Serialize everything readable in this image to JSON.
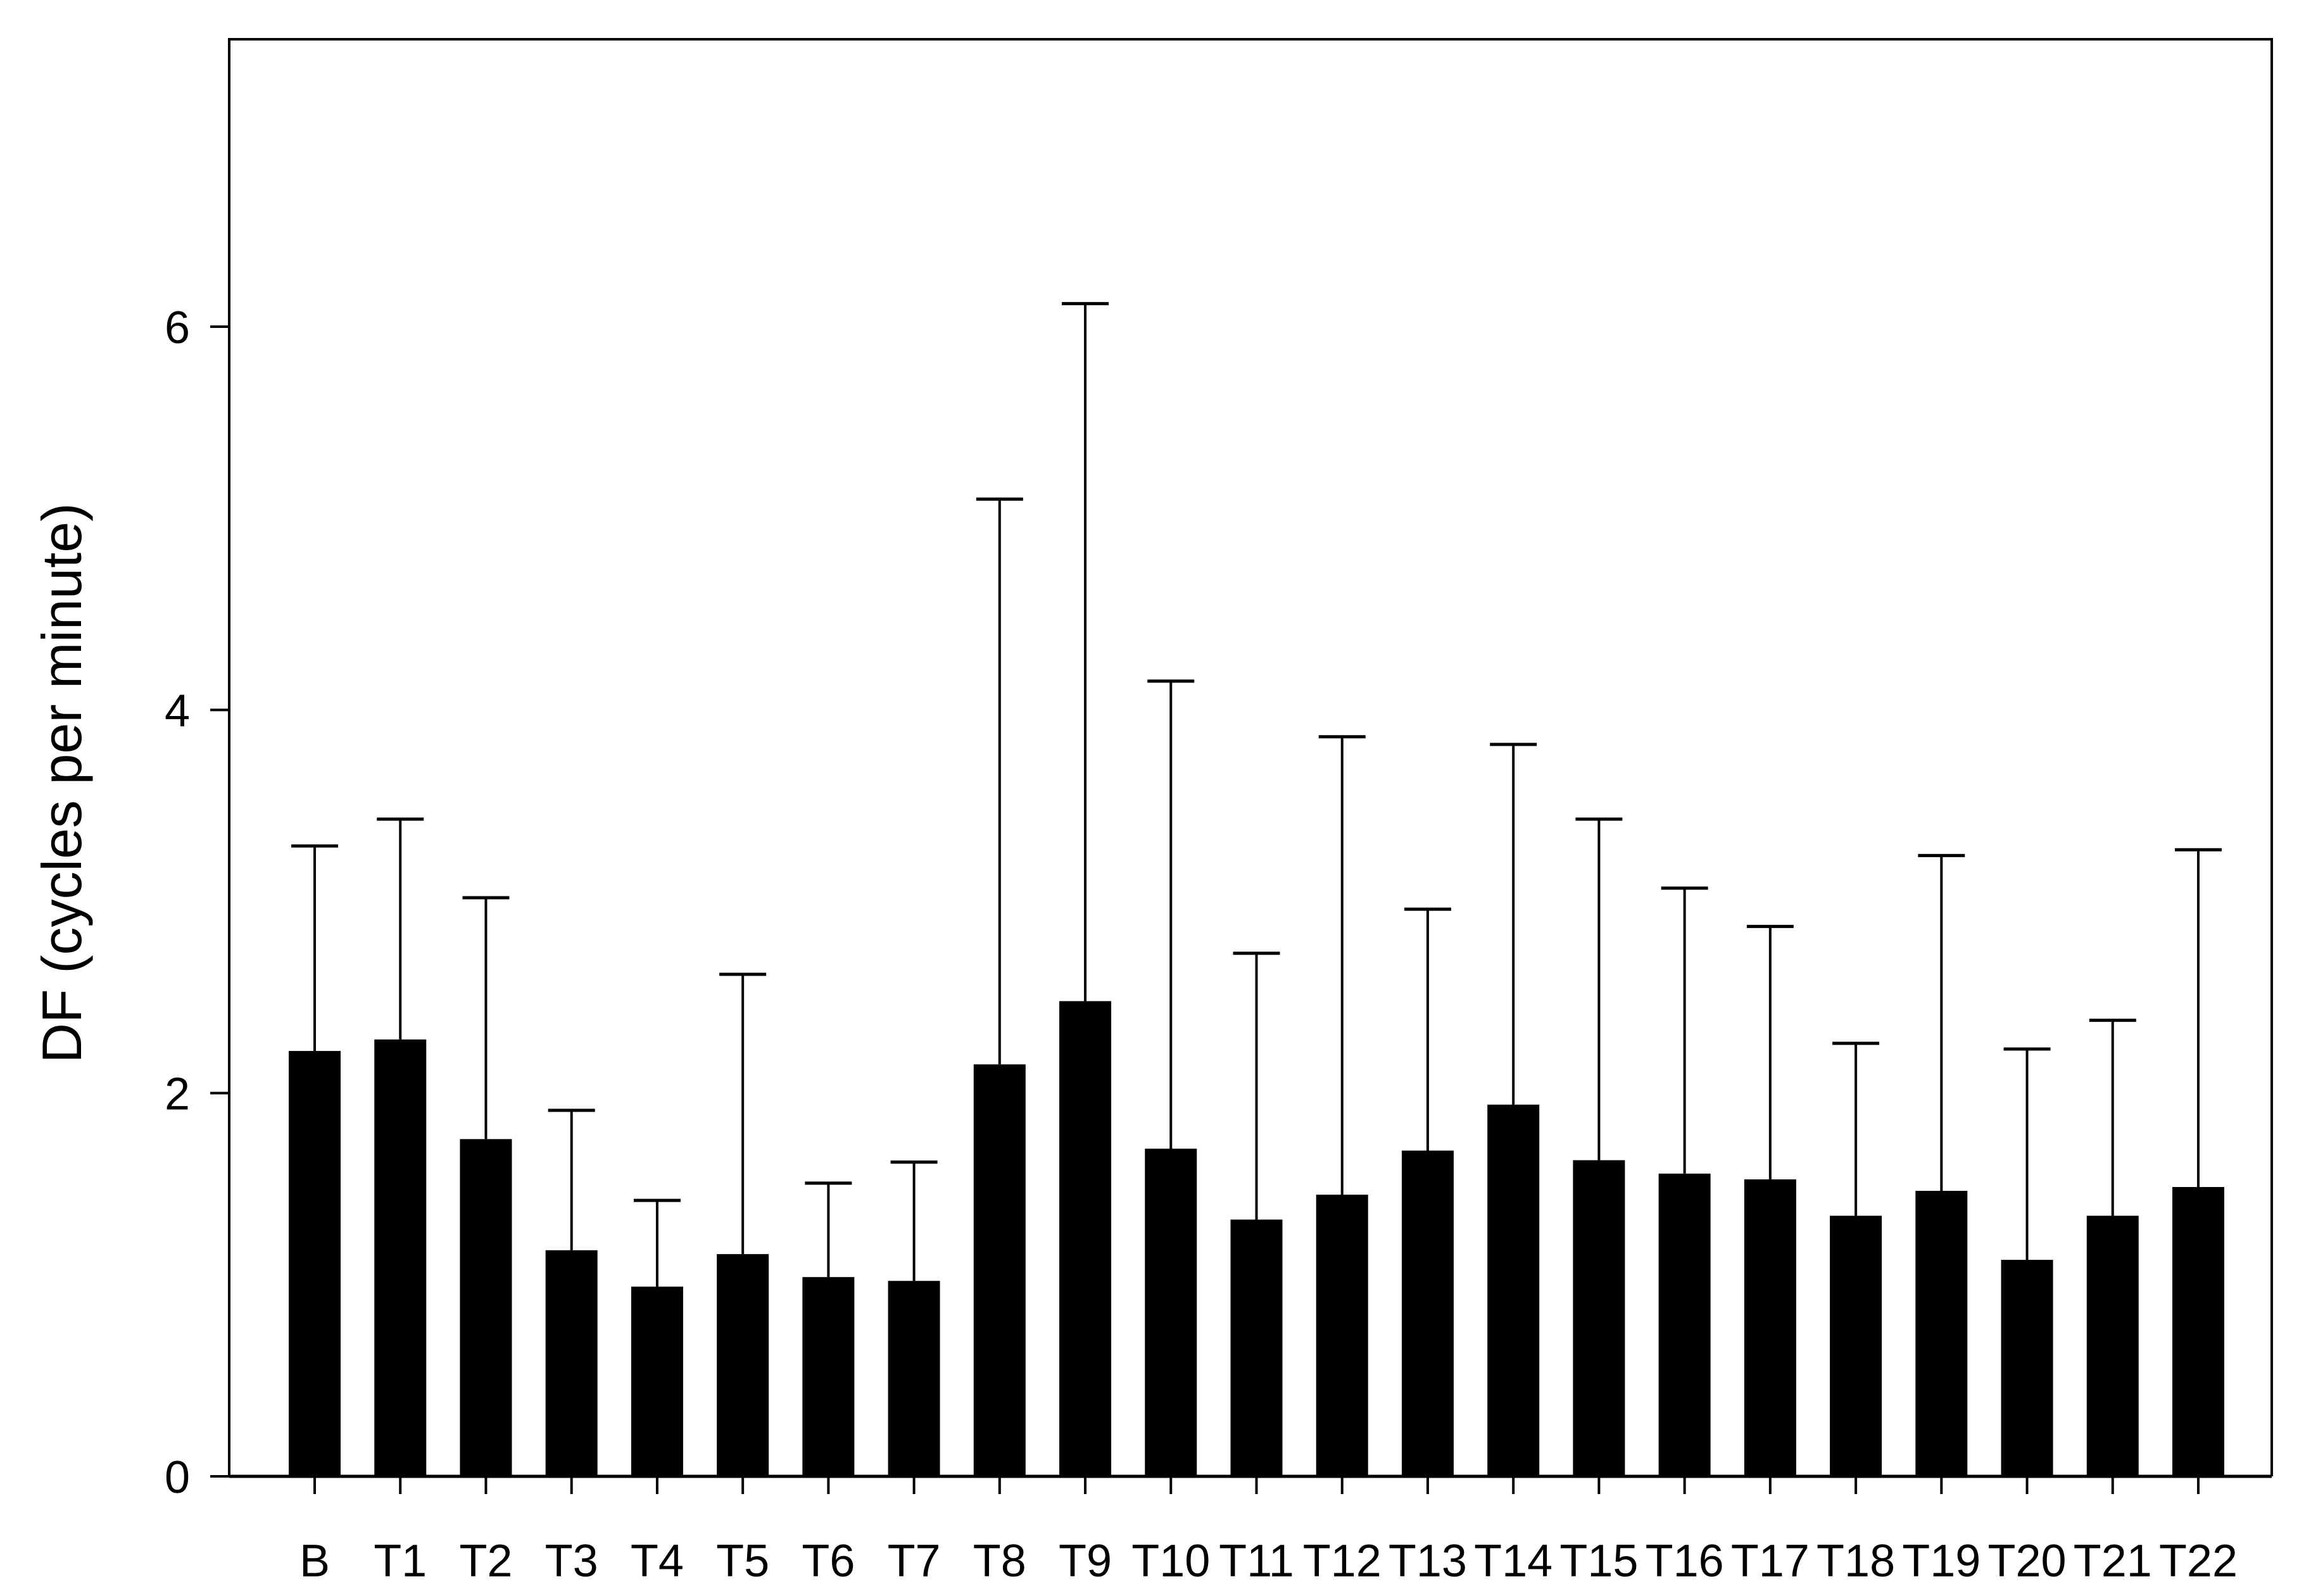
{
  "chart_data": {
    "type": "bar",
    "title": "",
    "xlabel": "",
    "ylabel": "DF (cycles per minute)",
    "ylim": [
      0,
      7.5
    ],
    "yticks": [
      0,
      2,
      4,
      6
    ],
    "ytick_labels": [
      "0",
      "2",
      "4",
      "6"
    ],
    "grid": false,
    "legend": "none",
    "bar_color": "#000000",
    "categories": [
      "B",
      "T1",
      "T2",
      "T3",
      "T4",
      "T5",
      "T6",
      "T7",
      "T8",
      "T9",
      "T10",
      "T11",
      "T12",
      "T13",
      "T14",
      "T15",
      "T16",
      "T17",
      "T18",
      "T19",
      "T20",
      "T21",
      "T22"
    ],
    "values": [
      2.22,
      2.28,
      1.76,
      1.18,
      0.99,
      1.16,
      1.04,
      1.02,
      2.15,
      2.48,
      1.71,
      1.34,
      1.47,
      1.7,
      1.94,
      1.65,
      1.58,
      1.55,
      1.36,
      1.49,
      1.13,
      1.36,
      1.51
    ],
    "error_upper": [
      3.29,
      3.43,
      3.02,
      1.91,
      1.44,
      2.62,
      1.53,
      1.64,
      5.1,
      6.12,
      4.15,
      2.73,
      3.86,
      2.96,
      3.82,
      3.43,
      3.07,
      2.87,
      2.26,
      3.24,
      2.23,
      2.38,
      3.27
    ]
  }
}
